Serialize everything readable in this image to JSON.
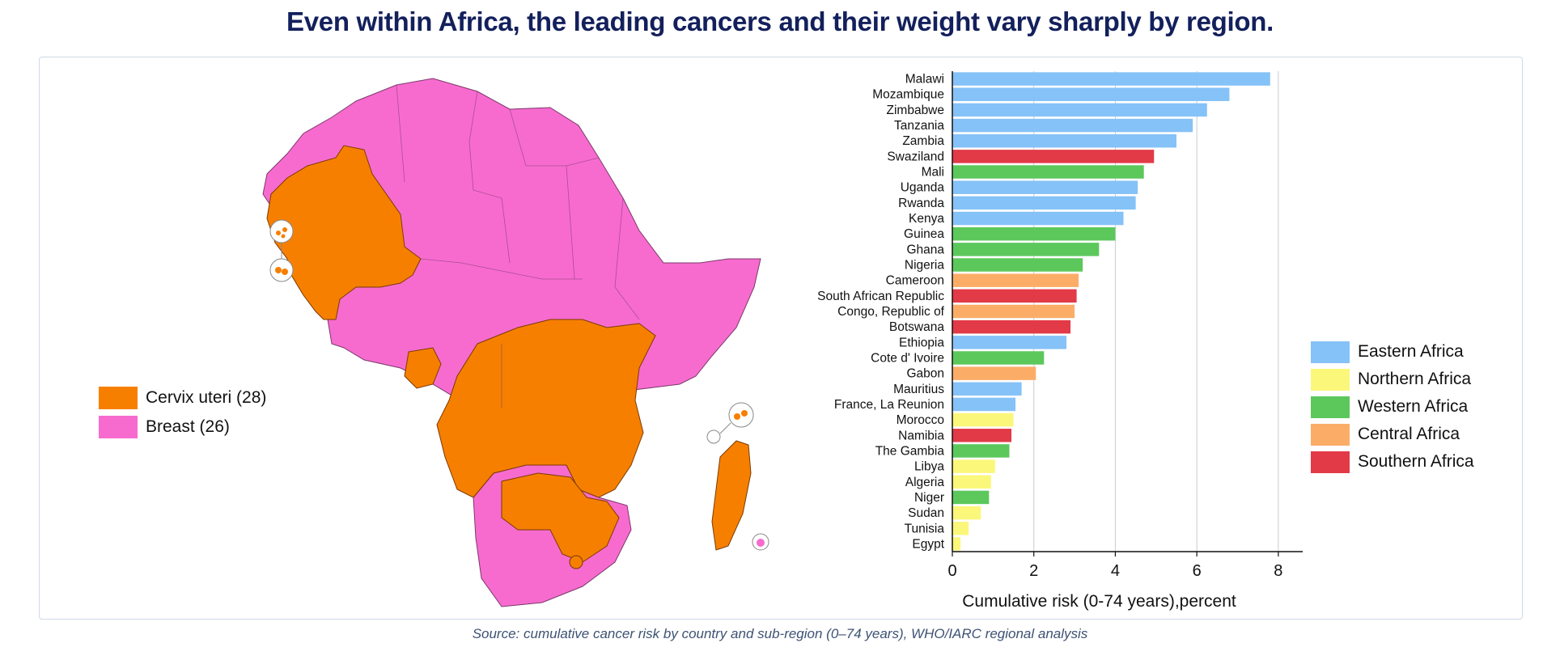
{
  "title": "Even within Africa, the leading cancers and their weight vary sharply by region.",
  "source": "Source: cumulative cancer risk by country and sub-region (0–74 years), WHO/IARC regional analysis",
  "map": {
    "legend": [
      {
        "label": "Cervix uteri (28)",
        "color": "#f77f00"
      },
      {
        "label": "Breast (26)",
        "color": "#f76bcf"
      }
    ]
  },
  "colors": {
    "eastern": "#85c2f7",
    "northern": "#fbf77a",
    "western": "#5cc85c",
    "central": "#fbad68",
    "southern": "#e23a47"
  },
  "chart_data": {
    "type": "bar",
    "orientation": "horizontal",
    "xlabel": "Cumulative risk (0-74 years),percent",
    "ylabel": "",
    "xlim": [
      0,
      8.4
    ],
    "xticks": [
      0,
      2,
      4,
      6,
      8
    ],
    "grid": true,
    "legend_position": "right",
    "legend": [
      {
        "name": "Eastern Africa",
        "color": "#85c2f7"
      },
      {
        "name": "Northern Africa",
        "color": "#fbf77a"
      },
      {
        "name": "Western Africa",
        "color": "#5cc85c"
      },
      {
        "name": "Central Africa",
        "color": "#fbad68"
      },
      {
        "name": "Southern Africa",
        "color": "#e23a47"
      }
    ],
    "bars": [
      {
        "country": "Malawi",
        "value": 7.8,
        "region": "Eastern Africa"
      },
      {
        "country": "Mozambique",
        "value": 6.8,
        "region": "Eastern Africa"
      },
      {
        "country": "Zimbabwe",
        "value": 6.25,
        "region": "Eastern Africa"
      },
      {
        "country": "Tanzania",
        "value": 5.9,
        "region": "Eastern Africa"
      },
      {
        "country": "Zambia",
        "value": 5.5,
        "region": "Eastern Africa"
      },
      {
        "country": "Swaziland",
        "value": 4.95,
        "region": "Southern Africa"
      },
      {
        "country": "Mali",
        "value": 4.7,
        "region": "Western Africa"
      },
      {
        "country": "Uganda",
        "value": 4.55,
        "region": "Eastern Africa"
      },
      {
        "country": "Rwanda",
        "value": 4.5,
        "region": "Eastern Africa"
      },
      {
        "country": "Kenya",
        "value": 4.2,
        "region": "Eastern Africa"
      },
      {
        "country": "Guinea",
        "value": 4.0,
        "region": "Western Africa"
      },
      {
        "country": "Ghana",
        "value": 3.6,
        "region": "Western Africa"
      },
      {
        "country": "Nigeria",
        "value": 3.2,
        "region": "Western Africa"
      },
      {
        "country": "Cameroon",
        "value": 3.1,
        "region": "Central Africa"
      },
      {
        "country": "South African Republic",
        "value": 3.05,
        "region": "Southern Africa"
      },
      {
        "country": "Congo, Republic of",
        "value": 3.0,
        "region": "Central Africa"
      },
      {
        "country": "Botswana",
        "value": 2.9,
        "region": "Southern Africa"
      },
      {
        "country": "Ethiopia",
        "value": 2.8,
        "region": "Eastern Africa"
      },
      {
        "country": "Cote d' Ivoire",
        "value": 2.25,
        "region": "Western Africa"
      },
      {
        "country": "Gabon",
        "value": 2.05,
        "region": "Central Africa"
      },
      {
        "country": "Mauritius",
        "value": 1.7,
        "region": "Eastern Africa"
      },
      {
        "country": "France, La Reunion",
        "value": 1.55,
        "region": "Eastern Africa"
      },
      {
        "country": "Morocco",
        "value": 1.5,
        "region": "Northern Africa"
      },
      {
        "country": "Namibia",
        "value": 1.45,
        "region": "Southern Africa"
      },
      {
        "country": "The Gambia",
        "value": 1.4,
        "region": "Western Africa"
      },
      {
        "country": "Libya",
        "value": 1.05,
        "region": "Northern Africa"
      },
      {
        "country": "Algeria",
        "value": 0.95,
        "region": "Northern Africa"
      },
      {
        "country": "Niger",
        "value": 0.9,
        "region": "Western Africa"
      },
      {
        "country": "Sudan",
        "value": 0.7,
        "region": "Northern Africa"
      },
      {
        "country": "Tunisia",
        "value": 0.4,
        "region": "Northern Africa"
      },
      {
        "country": "Egypt",
        "value": 0.2,
        "region": "Northern Africa"
      }
    ]
  }
}
